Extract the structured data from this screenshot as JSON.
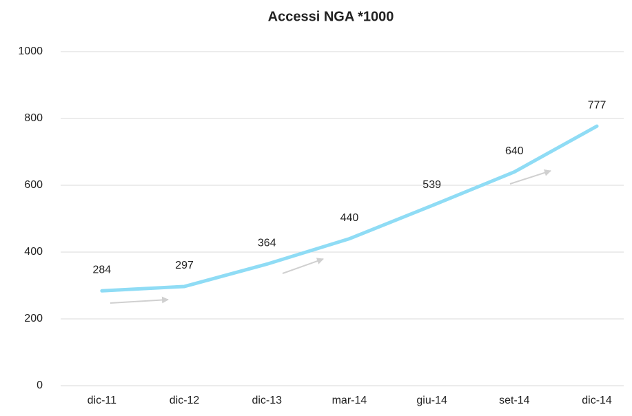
{
  "chart_data": {
    "type": "line",
    "title": "Accessi NGA *1000",
    "categories": [
      "dic-11",
      "dic-12",
      "dic-13",
      "mar-14",
      "giu-14",
      "set-14",
      "dic-14"
    ],
    "series": [
      {
        "name": "Accessi NGA",
        "color": "#8fdcf5",
        "values": [
          284,
          297,
          364,
          440,
          539,
          640,
          777
        ]
      }
    ],
    "ylim": [
      0,
      1000
    ],
    "yticks": [
      0,
      200,
      400,
      600,
      800,
      1000
    ],
    "grid": true,
    "data_labels": true
  }
}
